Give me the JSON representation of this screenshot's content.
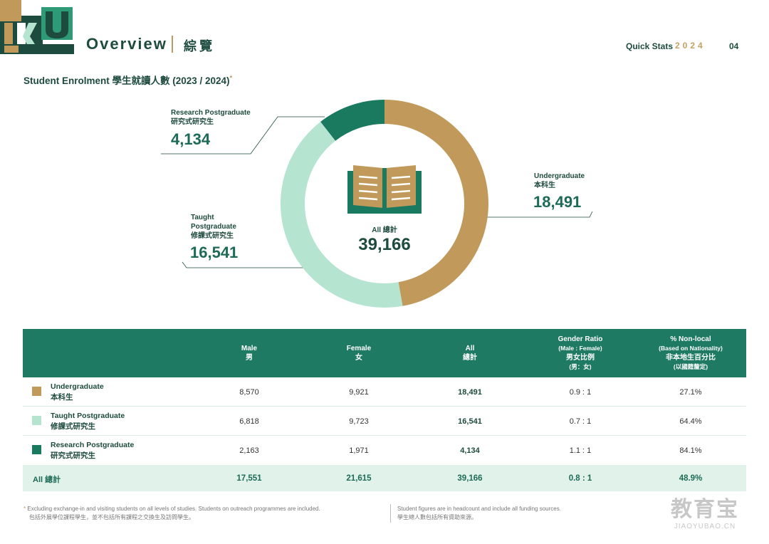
{
  "header": {
    "logo_text": "HKU",
    "title": "Overview",
    "title_cn": "綜覽",
    "quick_stats": "Quick Stats",
    "year": "2024",
    "page": "04"
  },
  "section": {
    "title": "Student Enrolment 學生就讀人數 (2023 / 2024)",
    "mark": "*"
  },
  "colors": {
    "undergraduate": "#c19a5b",
    "taught": "#b5e5d1",
    "research": "#1a7a60",
    "header_bg": "#1f7a63"
  },
  "chart_data": {
    "type": "pie",
    "variant": "donut",
    "center_label": "All 總計",
    "center_value": "39,166",
    "slices": [
      {
        "name": "Undergraduate",
        "name_cn": "本科生",
        "value": 18491,
        "value_label": "18,491",
        "color": "#c19a5b"
      },
      {
        "name": "Taught Postgraduate",
        "name_cn": "修課式研究生",
        "value": 16541,
        "value_label": "16,541",
        "color": "#b5e5d1"
      },
      {
        "name": "Research Postgraduate",
        "name_cn": "研究式研究生",
        "value": 4134,
        "value_label": "4,134",
        "color": "#1a7a60"
      }
    ]
  },
  "table": {
    "headers": {
      "male": "Male",
      "male_cn": "男",
      "female": "Female",
      "female_cn": "女",
      "all": "All",
      "all_cn": "總計",
      "ratio": "Gender Ratio",
      "ratio_sub": "(Male : Female)",
      "ratio_cn": "男女比例",
      "ratio_cn_sub": "(男：女)",
      "nonlocal": "% Non-local",
      "nonlocal_sub": "(Based on Nationality)",
      "nonlocal_cn": "非本地生百分比",
      "nonlocal_cn_sub": "(以國籍釐定)"
    },
    "rows": [
      {
        "label": "Undergraduate",
        "label_cn": "本科生",
        "male": "8,570",
        "female": "9,921",
        "all": "18,491",
        "ratio": "0.9 : 1",
        "nonlocal": "27.1%"
      },
      {
        "label": "Taught Postgraduate",
        "label_cn": "修課式研究生",
        "male": "6,818",
        "female": "9,723",
        "all": "16,541",
        "ratio": "0.7 : 1",
        "nonlocal": "64.4%"
      },
      {
        "label": "Research Postgraduate",
        "label_cn": "研究式研究生",
        "male": "2,163",
        "female": "1,971",
        "all": "4,134",
        "ratio": "1.1 : 1",
        "nonlocal": "84.1%"
      }
    ],
    "total": {
      "label": "All 總計",
      "male": "17,551",
      "female": "21,615",
      "all": "39,166",
      "ratio": "0.8 : 1",
      "nonlocal": "48.9%"
    }
  },
  "footnotes": {
    "left_mark": "*",
    "left_en": "Excluding exchange-in and visiting students on all levels of studies. Students on outreach programmes are included.",
    "left_cn": "包括外展學位課程學生，並不包括所有課程之交換生及訪問學生。",
    "right_en": "Student figures are in headcount and include all funding sources.",
    "right_cn": "學生總人數包括所有資助來源。"
  },
  "watermark": {
    "cn": "教育宝",
    "en": "JIAOYUBAO.CN"
  }
}
